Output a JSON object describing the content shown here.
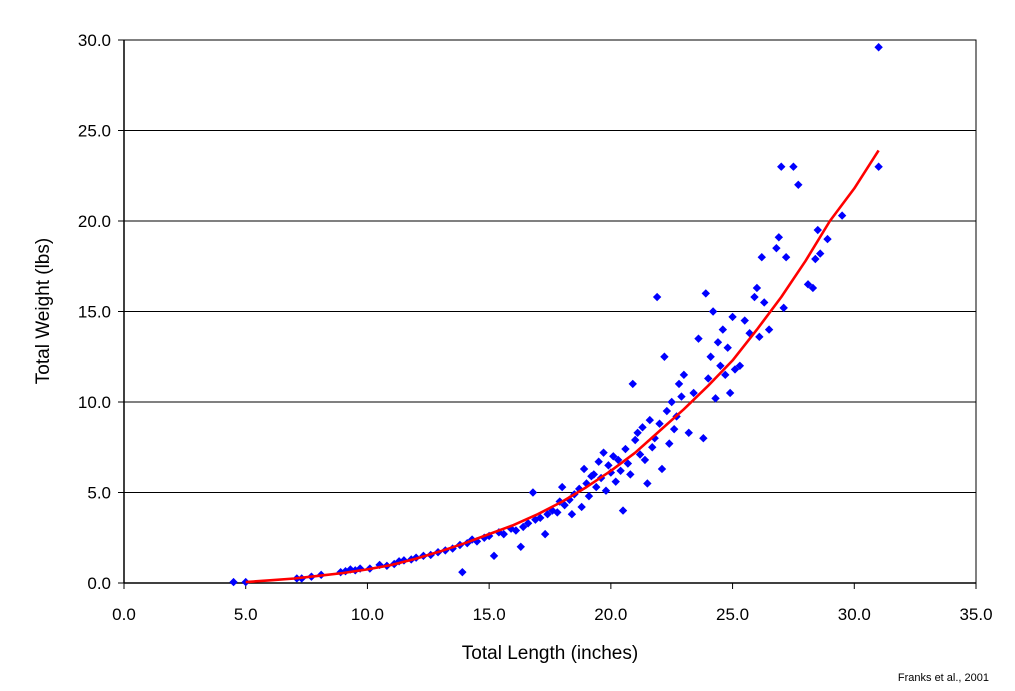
{
  "chart_data": {
    "type": "scatter",
    "xlabel": "Total Length (inches)",
    "ylabel": "Total Weight (lbs)",
    "source_note": "Franks et al., 2001",
    "xlim": [
      0,
      35
    ],
    "ylim": [
      0,
      30
    ],
    "x_ticks": [
      "0.0",
      "5.0",
      "10.0",
      "15.0",
      "20.0",
      "25.0",
      "30.0",
      "35.0"
    ],
    "y_ticks": [
      "0.0",
      "5.0",
      "10.0",
      "15.0",
      "20.0",
      "25.0",
      "30.0"
    ],
    "grid": "horizontal",
    "legend": "none",
    "colors": {
      "points": "#0000ff",
      "trendline": "#ff0000",
      "axes": "#000000"
    },
    "series": [
      {
        "kind": "points",
        "marker": "diamond",
        "points": [
          [
            4.5,
            0.05
          ],
          [
            5.0,
            0.05
          ],
          [
            7.1,
            0.25
          ],
          [
            7.3,
            0.25
          ],
          [
            7.7,
            0.35
          ],
          [
            8.1,
            0.45
          ],
          [
            8.9,
            0.6
          ],
          [
            9.1,
            0.65
          ],
          [
            9.3,
            0.75
          ],
          [
            9.5,
            0.7
          ],
          [
            9.7,
            0.8
          ],
          [
            10.1,
            0.8
          ],
          [
            10.5,
            1.0
          ],
          [
            10.8,
            0.95
          ],
          [
            11.1,
            1.05
          ],
          [
            11.3,
            1.2
          ],
          [
            11.5,
            1.25
          ],
          [
            11.8,
            1.3
          ],
          [
            12.0,
            1.4
          ],
          [
            12.3,
            1.5
          ],
          [
            12.6,
            1.55
          ],
          [
            12.9,
            1.7
          ],
          [
            13.2,
            1.8
          ],
          [
            13.5,
            1.9
          ],
          [
            13.9,
            0.6
          ],
          [
            13.8,
            2.1
          ],
          [
            14.1,
            2.2
          ],
          [
            14.3,
            2.4
          ],
          [
            14.5,
            2.3
          ],
          [
            14.8,
            2.5
          ],
          [
            15.0,
            2.6
          ],
          [
            15.2,
            1.5
          ],
          [
            15.4,
            2.8
          ],
          [
            15.6,
            2.7
          ],
          [
            15.9,
            3.0
          ],
          [
            16.1,
            2.9
          ],
          [
            16.3,
            2.0
          ],
          [
            16.4,
            3.1
          ],
          [
            16.6,
            3.3
          ],
          [
            16.8,
            5.0
          ],
          [
            16.9,
            3.5
          ],
          [
            17.1,
            3.6
          ],
          [
            17.3,
            2.7
          ],
          [
            17.4,
            3.8
          ],
          [
            17.6,
            4.0
          ],
          [
            17.8,
            3.9
          ],
          [
            17.9,
            4.5
          ],
          [
            18.0,
            5.3
          ],
          [
            18.1,
            4.3
          ],
          [
            18.3,
            4.6
          ],
          [
            18.4,
            3.8
          ],
          [
            18.5,
            4.9
          ],
          [
            18.7,
            5.2
          ],
          [
            18.8,
            4.2
          ],
          [
            18.9,
            6.3
          ],
          [
            19.0,
            5.5
          ],
          [
            19.1,
            4.8
          ],
          [
            19.2,
            5.9
          ],
          [
            19.3,
            6.0
          ],
          [
            19.4,
            5.3
          ],
          [
            19.5,
            6.7
          ],
          [
            19.6,
            5.8
          ],
          [
            19.7,
            7.2
          ],
          [
            19.8,
            5.1
          ],
          [
            19.9,
            6.5
          ],
          [
            20.0,
            6.1
          ],
          [
            20.1,
            7.0
          ],
          [
            20.2,
            5.6
          ],
          [
            20.3,
            6.8
          ],
          [
            20.4,
            6.2
          ],
          [
            20.5,
            4.0
          ],
          [
            20.6,
            7.4
          ],
          [
            20.7,
            6.6
          ],
          [
            20.8,
            6.0
          ],
          [
            20.9,
            11.0
          ],
          [
            21.0,
            7.9
          ],
          [
            21.1,
            8.3
          ],
          [
            21.2,
            7.1
          ],
          [
            21.3,
            8.6
          ],
          [
            21.4,
            6.8
          ],
          [
            21.5,
            5.5
          ],
          [
            21.6,
            9.0
          ],
          [
            21.7,
            7.5
          ],
          [
            21.8,
            8.0
          ],
          [
            21.9,
            15.8
          ],
          [
            22.0,
            8.8
          ],
          [
            22.1,
            6.3
          ],
          [
            22.2,
            12.5
          ],
          [
            22.3,
            9.5
          ],
          [
            22.4,
            7.7
          ],
          [
            22.5,
            10.0
          ],
          [
            22.6,
            8.5
          ],
          [
            22.7,
            9.2
          ],
          [
            22.8,
            11.0
          ],
          [
            22.9,
            10.3
          ],
          [
            23.0,
            11.5
          ],
          [
            23.2,
            8.3
          ],
          [
            23.4,
            10.5
          ],
          [
            23.6,
            13.5
          ],
          [
            23.8,
            8.0
          ],
          [
            23.9,
            16.0
          ],
          [
            24.0,
            11.3
          ],
          [
            24.1,
            12.5
          ],
          [
            24.2,
            15.0
          ],
          [
            24.3,
            10.2
          ],
          [
            24.4,
            13.3
          ],
          [
            24.5,
            12.0
          ],
          [
            24.6,
            14.0
          ],
          [
            24.7,
            11.5
          ],
          [
            24.8,
            13.0
          ],
          [
            24.9,
            10.5
          ],
          [
            25.0,
            14.7
          ],
          [
            25.1,
            11.8
          ],
          [
            25.3,
            12.0
          ],
          [
            25.5,
            14.5
          ],
          [
            25.7,
            13.8
          ],
          [
            25.9,
            15.8
          ],
          [
            26.0,
            16.3
          ],
          [
            26.1,
            13.6
          ],
          [
            26.2,
            18.0
          ],
          [
            26.3,
            15.5
          ],
          [
            26.5,
            14.0
          ],
          [
            26.8,
            18.5
          ],
          [
            26.9,
            19.1
          ],
          [
            27.0,
            23.0
          ],
          [
            27.1,
            15.2
          ],
          [
            27.2,
            18.0
          ],
          [
            27.5,
            23.0
          ],
          [
            27.7,
            22.0
          ],
          [
            28.1,
            16.5
          ],
          [
            28.3,
            16.3
          ],
          [
            28.4,
            17.9
          ],
          [
            28.5,
            19.5
          ],
          [
            28.6,
            18.2
          ],
          [
            28.9,
            19.0
          ],
          [
            29.5,
            20.3
          ],
          [
            31.0,
            29.6
          ],
          [
            31.0,
            23.0
          ]
        ]
      },
      {
        "kind": "line",
        "points": [
          [
            5.0,
            0.05
          ],
          [
            6.0,
            0.15
          ],
          [
            7.0,
            0.25
          ],
          [
            8.0,
            0.4
          ],
          [
            9.0,
            0.55
          ],
          [
            10.0,
            0.75
          ],
          [
            11.0,
            1.0
          ],
          [
            12.0,
            1.35
          ],
          [
            13.0,
            1.75
          ],
          [
            14.0,
            2.2
          ],
          [
            15.0,
            2.7
          ],
          [
            16.0,
            3.2
          ],
          [
            17.0,
            3.8
          ],
          [
            18.0,
            4.5
          ],
          [
            19.0,
            5.3
          ],
          [
            20.0,
            6.2
          ],
          [
            21.0,
            7.2
          ],
          [
            22.0,
            8.4
          ],
          [
            23.0,
            9.6
          ],
          [
            24.0,
            10.9
          ],
          [
            25.0,
            12.3
          ],
          [
            26.0,
            14.0
          ],
          [
            27.0,
            15.8
          ],
          [
            28.0,
            17.8
          ],
          [
            29.0,
            20.0
          ],
          [
            30.0,
            21.8
          ],
          [
            31.0,
            23.9
          ]
        ]
      }
    ]
  }
}
